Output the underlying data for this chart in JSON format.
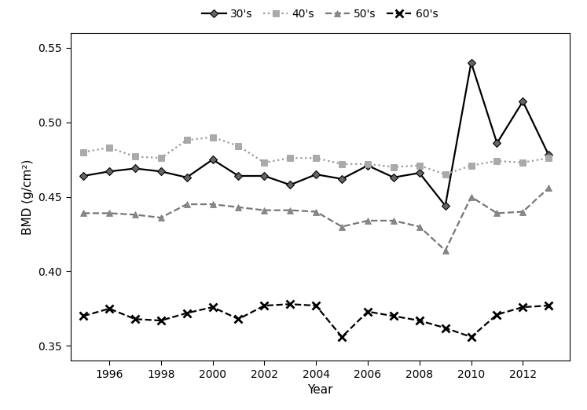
{
  "years": [
    1995,
    1996,
    1997,
    1998,
    1999,
    2000,
    2001,
    2002,
    2003,
    2004,
    2005,
    2006,
    2007,
    2008,
    2009,
    2010,
    2011,
    2012,
    2013
  ],
  "thirties": [
    0.464,
    0.467,
    0.469,
    0.467,
    0.463,
    0.475,
    0.464,
    0.464,
    0.458,
    0.465,
    0.462,
    0.471,
    0.463,
    0.466,
    0.444,
    0.54,
    0.486,
    0.514,
    0.478
  ],
  "forties": [
    0.48,
    0.483,
    0.477,
    0.476,
    0.488,
    0.49,
    0.484,
    0.473,
    0.476,
    0.476,
    0.472,
    0.472,
    0.47,
    0.471,
    0.465,
    0.471,
    0.474,
    0.473,
    0.476
  ],
  "fifties": [
    0.439,
    0.439,
    0.438,
    0.436,
    0.445,
    0.445,
    0.443,
    0.441,
    0.441,
    0.44,
    0.43,
    0.434,
    0.434,
    0.43,
    0.414,
    0.45,
    0.439,
    0.44,
    0.456
  ],
  "sixties": [
    0.37,
    0.375,
    0.368,
    0.367,
    0.372,
    0.376,
    0.368,
    0.377,
    0.378,
    0.377,
    0.356,
    0.373,
    0.37,
    0.367,
    0.362,
    0.356,
    0.371,
    0.376,
    0.377
  ],
  "color_30": "#000000",
  "color_40": "#999999",
  "color_50": "#777777",
  "color_60": "#000000",
  "ylabel": "BMD (g/cm²)",
  "xlabel": "Year",
  "ylim": [
    0.34,
    0.56
  ],
  "yticks": [
    0.35,
    0.4,
    0.45,
    0.5,
    0.55
  ],
  "xticks": [
    1996,
    1998,
    2000,
    2002,
    2004,
    2006,
    2008,
    2010,
    2012
  ],
  "legend_labels": [
    "30's",
    "40's",
    "50's",
    "60's"
  ],
  "background_color": "#ffffff"
}
